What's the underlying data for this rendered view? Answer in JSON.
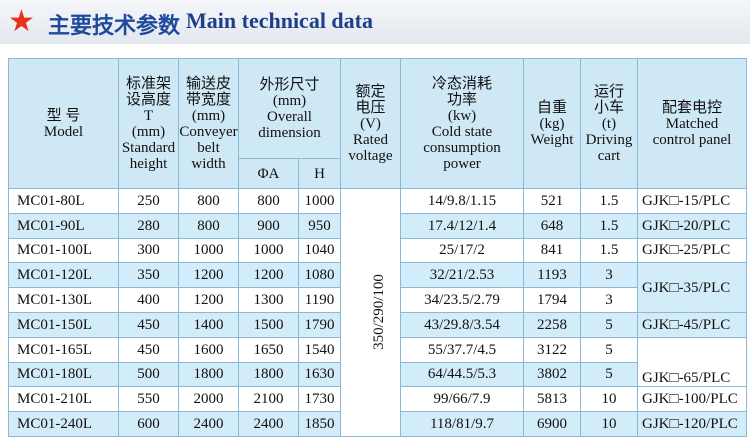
{
  "title": {
    "cn": "主要技术参数",
    "en": "Main technical data"
  },
  "header": {
    "model": [
      "型 号",
      "Model"
    ],
    "height": [
      "标准架",
      "设高度",
      "T",
      "(mm)",
      "Standard",
      "height"
    ],
    "width": [
      "输送皮",
      "带宽度",
      "(mm)",
      "Conveyer",
      "belt width"
    ],
    "overall": [
      "外形尺寸",
      "(mm)",
      "Overall",
      "dimension"
    ],
    "a": "ΦA",
    "h": "H",
    "voltage": [
      "额定",
      "电压",
      "(V)",
      "Rated",
      "voltage"
    ],
    "power": [
      "冷态消耗",
      "功率",
      "(kw)",
      "Cold state",
      "consumption",
      "power"
    ],
    "weight": [
      "自重",
      "(kg)",
      "Weight"
    ],
    "cart": [
      "运行",
      "小车",
      "(t)",
      "Driving",
      "cart"
    ],
    "panel": [
      "配套电控",
      "Matched",
      "control panel"
    ]
  },
  "voltage": "350/290/100",
  "rows": [
    [
      "MC01-80L",
      250,
      800,
      800,
      1000,
      "14/9.8/1.15",
      521,
      1.5
    ],
    [
      "MC01-90L",
      280,
      800,
      900,
      950,
      "17.4/12/1.4",
      648,
      1.5
    ],
    [
      "MC01-100L",
      300,
      1000,
      1000,
      1040,
      "25/17/2",
      841,
      1.5
    ],
    [
      "MC01-120L",
      350,
      1200,
      1200,
      1080,
      "32/21/2.53",
      1193,
      3
    ],
    [
      "MC01-130L",
      400,
      1200,
      1300,
      1190,
      "34/23.5/2.79",
      1794,
      3
    ],
    [
      "MC01-150L",
      450,
      1400,
      1500,
      1790,
      "43/29.8/3.54",
      2258,
      5
    ],
    [
      "MC01-165L",
      450,
      1600,
      1650,
      1540,
      "55/37.7/4.5",
      3122,
      5
    ],
    [
      "MC01-180L",
      500,
      1800,
      1800,
      1630,
      "64/44.5/5.3",
      3802,
      5
    ],
    [
      "MC01-210L",
      550,
      2000,
      2100,
      1730,
      "99/66/7.9",
      5813,
      10
    ],
    [
      "MC01-240L",
      600,
      2400,
      2400,
      1850,
      "118/81/9.7",
      6900,
      10
    ]
  ],
  "panels": [
    "GJK□-15/PLC",
    "GJK□-20/PLC",
    "GJK□-25/PLC",
    "GJK□-35/PLC",
    "GJK□-45/PLC",
    "GJK□-65/PLC",
    "GJK□-100/PLC",
    "GJK□-120/PLC"
  ]
}
